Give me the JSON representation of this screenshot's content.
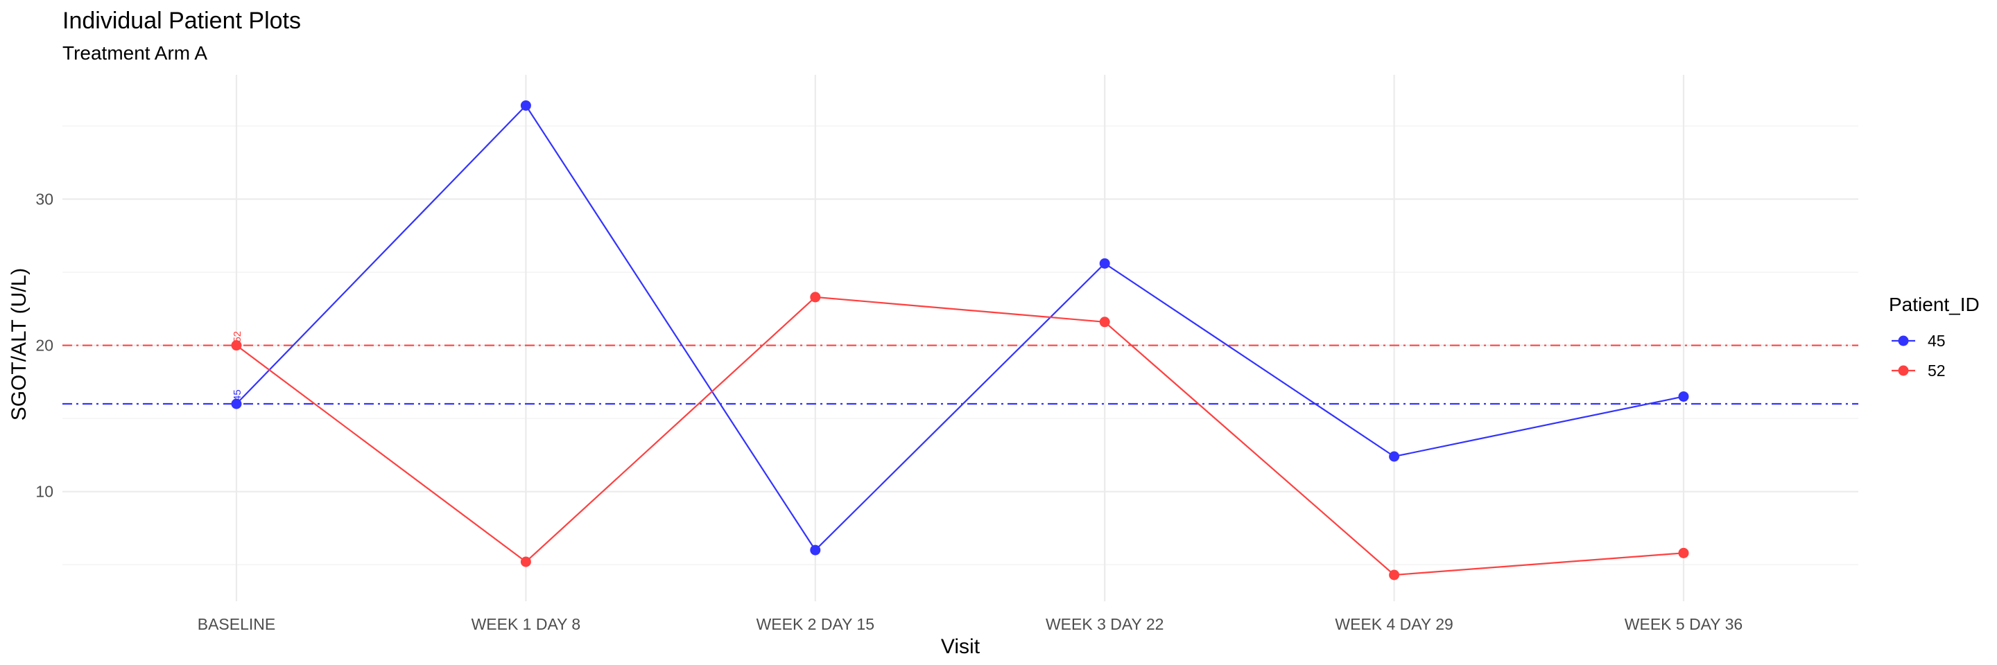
{
  "chart_data": {
    "type": "line",
    "title": "Individual Patient Plots",
    "subtitle": "Treatment Arm A",
    "xlabel": "Visit",
    "ylabel": "SGOT/ALT (U/L)",
    "categories": [
      "BASELINE",
      "WEEK 1 DAY 8",
      "WEEK 2 DAY 15",
      "WEEK 3 DAY 22",
      "WEEK 4 DAY 29",
      "WEEK 5 DAY 36"
    ],
    "ylim": [
      2.5,
      38.5
    ],
    "yticks": [
      10,
      20,
      30
    ],
    "grid": true,
    "legend_title": "Patient_ID",
    "legend_position": "right",
    "series": [
      {
        "name": "45",
        "color": "#3333ff",
        "values": [
          16.0,
          36.4,
          6.0,
          25.6,
          12.4,
          16.5
        ],
        "baseline": 16.0,
        "baseline_label": "45"
      },
      {
        "name": "52",
        "color": "#ff4040",
        "values": [
          20.0,
          5.2,
          23.3,
          21.6,
          4.3,
          5.8
        ],
        "baseline": 20.0,
        "baseline_label": "52"
      }
    ]
  }
}
